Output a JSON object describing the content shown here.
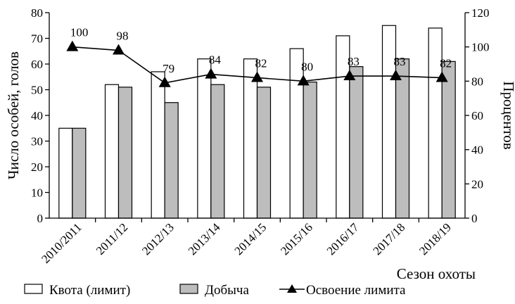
{
  "chart_data": {
    "type": "bar",
    "title": "",
    "xlabel": "Сезон охоты",
    "ylabel": "Число особей, голов",
    "y2label": "Процентов",
    "ylim": [
      0,
      80
    ],
    "y2lim": [
      0,
      120
    ],
    "yticks": [
      0,
      10,
      20,
      30,
      40,
      50,
      60,
      70,
      80
    ],
    "y2ticks": [
      0,
      20,
      40,
      60,
      80,
      100,
      120
    ],
    "grid": false,
    "legend_position": "bottom",
    "categories": [
      "2010/2011",
      "2011/12",
      "2012/13",
      "2013/14",
      "2014/15",
      "2015/16",
      "2016/17",
      "2017/18",
      "2018/19"
    ],
    "series": [
      {
        "name": "Квота (лимит)",
        "kind": "bar",
        "axis": "left",
        "color": "#ffffff",
        "values": [
          35,
          52,
          57,
          62,
          62,
          66,
          71,
          75,
          74
        ]
      },
      {
        "name": "Добыча",
        "kind": "bar",
        "axis": "left",
        "color": "#bdbdbd",
        "values": [
          35,
          51,
          45,
          52,
          51,
          53,
          59,
          62,
          61
        ]
      },
      {
        "name": "Освоение лимита",
        "kind": "line",
        "axis": "right",
        "marker": "triangle",
        "color": "#000000",
        "values": [
          100,
          98,
          79,
          84,
          82,
          80,
          83,
          83,
          82
        ]
      }
    ]
  }
}
